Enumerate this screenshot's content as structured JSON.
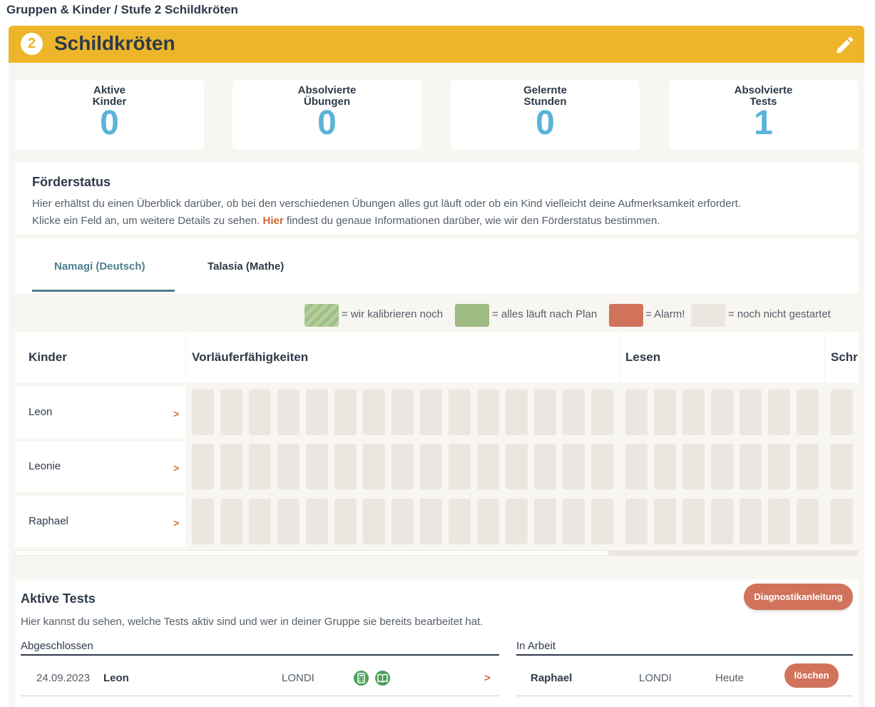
{
  "breadcrumb": "Gruppen & Kinder / Stufe 2 Schildkröten",
  "group": {
    "level": "2",
    "title": "Schildkröten"
  },
  "stats": [
    {
      "label1": "Aktive",
      "label2": "Kinder",
      "value": "0"
    },
    {
      "label1": "Absolvierte",
      "label2": "Übungen",
      "value": "0"
    },
    {
      "label1": "Gelernte",
      "label2": "Stunden",
      "value": "0"
    },
    {
      "label1": "Absolvierte",
      "label2": "Tests",
      "value": "1"
    }
  ],
  "foerderstatus": {
    "title": "Förderstatus",
    "text1": "Hier erhältst du einen Überblick darüber, ob bei den verschiedenen Übungen alles gut läuft oder ob ein Kind vielleicht deine Aufmerksamkeit erfordert.",
    "text2a": "Klicke ein Feld an, um weitere Details zu sehen.",
    "link": "Hier",
    "text2b": "findest du genaue Informationen darüber, wie wir den Förderstatus bestimmen."
  },
  "tabs": [
    {
      "label": "Namagi (Deutsch)",
      "active": true
    },
    {
      "label": "Talasia (Mathe)",
      "active": false
    }
  ],
  "legend": {
    "kalibrieren": "= wir kalibrieren noch",
    "plan": "= alles läuft nach Plan",
    "alarm": "= Alarm!",
    "nicht": "= noch nicht gestartet"
  },
  "grid": {
    "headers": {
      "kinder": "Kinder",
      "vorlaeufer": "Vorläuferfähigkeiten",
      "lesen": "Lesen",
      "schr": "Schr"
    },
    "kids": [
      "Leon",
      "Leonie",
      "Raphael"
    ],
    "chevron": ">"
  },
  "tests": {
    "title": "Aktive Tests",
    "desc": "Hier kannst du sehen, welche Tests aktiv sind und wer in deiner Gruppe sie bereits bearbeitet hat.",
    "button": "Diagnostikanleitung",
    "completed_head": "Abgeschlossen",
    "inprogress_head": "In Arbeit",
    "completed": {
      "date": "24.09.2023",
      "name": "Leon",
      "test": "LONDI",
      "chevron": ">"
    },
    "inprogress": {
      "name": "Raphael",
      "test": "LONDI",
      "when": "Heute",
      "delete": "löschen"
    }
  },
  "colors": {
    "header": "#ecb52a",
    "accent": "#d0735a",
    "statValue": "#5ab3d8",
    "tabActive": "#4f7e8f"
  },
  "icons": {
    "edit": "pencil-icon",
    "calc": "calculator-icon",
    "book": "book-icon"
  }
}
